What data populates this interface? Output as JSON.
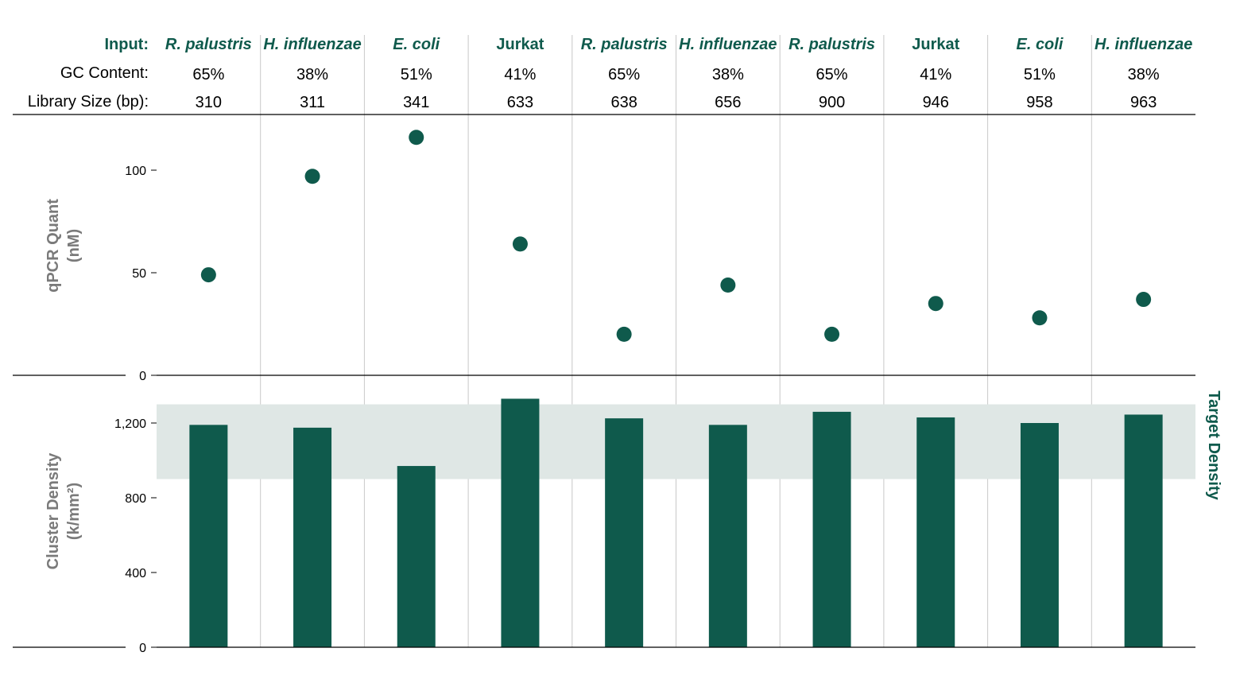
{
  "colors": {
    "accent": "#0f5a4c",
    "band": "#dfe7e5",
    "axis_title": "#7a7a7a",
    "grid": "#c8c8c8"
  },
  "header": {
    "input_label": "Input:",
    "gc_label": "GC Content:",
    "size_label": "Library Size (bp):"
  },
  "chart_data": [
    {
      "type": "table",
      "columns": [
        "Input",
        "GC Content",
        "Library Size (bp)"
      ],
      "rows": [
        {
          "input": "R. palustris",
          "gc": "65%",
          "size": "310",
          "italic": true
        },
        {
          "input": "H. influenzae",
          "gc": "38%",
          "size": "311",
          "italic": true
        },
        {
          "input": "E. coli",
          "gc": "51%",
          "size": "341",
          "italic": true
        },
        {
          "input": "Jurkat",
          "gc": "41%",
          "size": "633",
          "italic": false
        },
        {
          "input": "R. palustris",
          "gc": "65%",
          "size": "638",
          "italic": true
        },
        {
          "input": "H. influenzae",
          "gc": "38%",
          "size": "656",
          "italic": true
        },
        {
          "input": "R. palustris",
          "gc": "65%",
          "size": "900",
          "italic": true
        },
        {
          "input": "Jurkat",
          "gc": "41%",
          "size": "946",
          "italic": false
        },
        {
          "input": "E. coli",
          "gc": "51%",
          "size": "958",
          "italic": true
        },
        {
          "input": "H. influenzae",
          "gc": "38%",
          "size": "963",
          "italic": true
        }
      ]
    },
    {
      "type": "scatter",
      "ylabel_line1": "qPCR Quant",
      "ylabel_line2": "(nM)",
      "ylim": [
        0,
        125
      ],
      "yticks": [
        0,
        50,
        100
      ],
      "values": [
        49,
        97,
        116,
        64,
        20,
        44,
        20,
        35,
        28,
        37
      ]
    },
    {
      "type": "bar",
      "ylabel_line1": "Cluster Density",
      "ylabel_line2": "(k/mm²)",
      "ylim": [
        0,
        1400
      ],
      "yticks": [
        0,
        400,
        800,
        1200
      ],
      "yticks_labels": [
        "0",
        "400",
        "800",
        "1,200"
      ],
      "values": [
        1190,
        1175,
        970,
        1330,
        1225,
        1190,
        1260,
        1230,
        1200,
        1245
      ],
      "target_band": [
        900,
        1300
      ],
      "target_label": "Target Density"
    }
  ]
}
